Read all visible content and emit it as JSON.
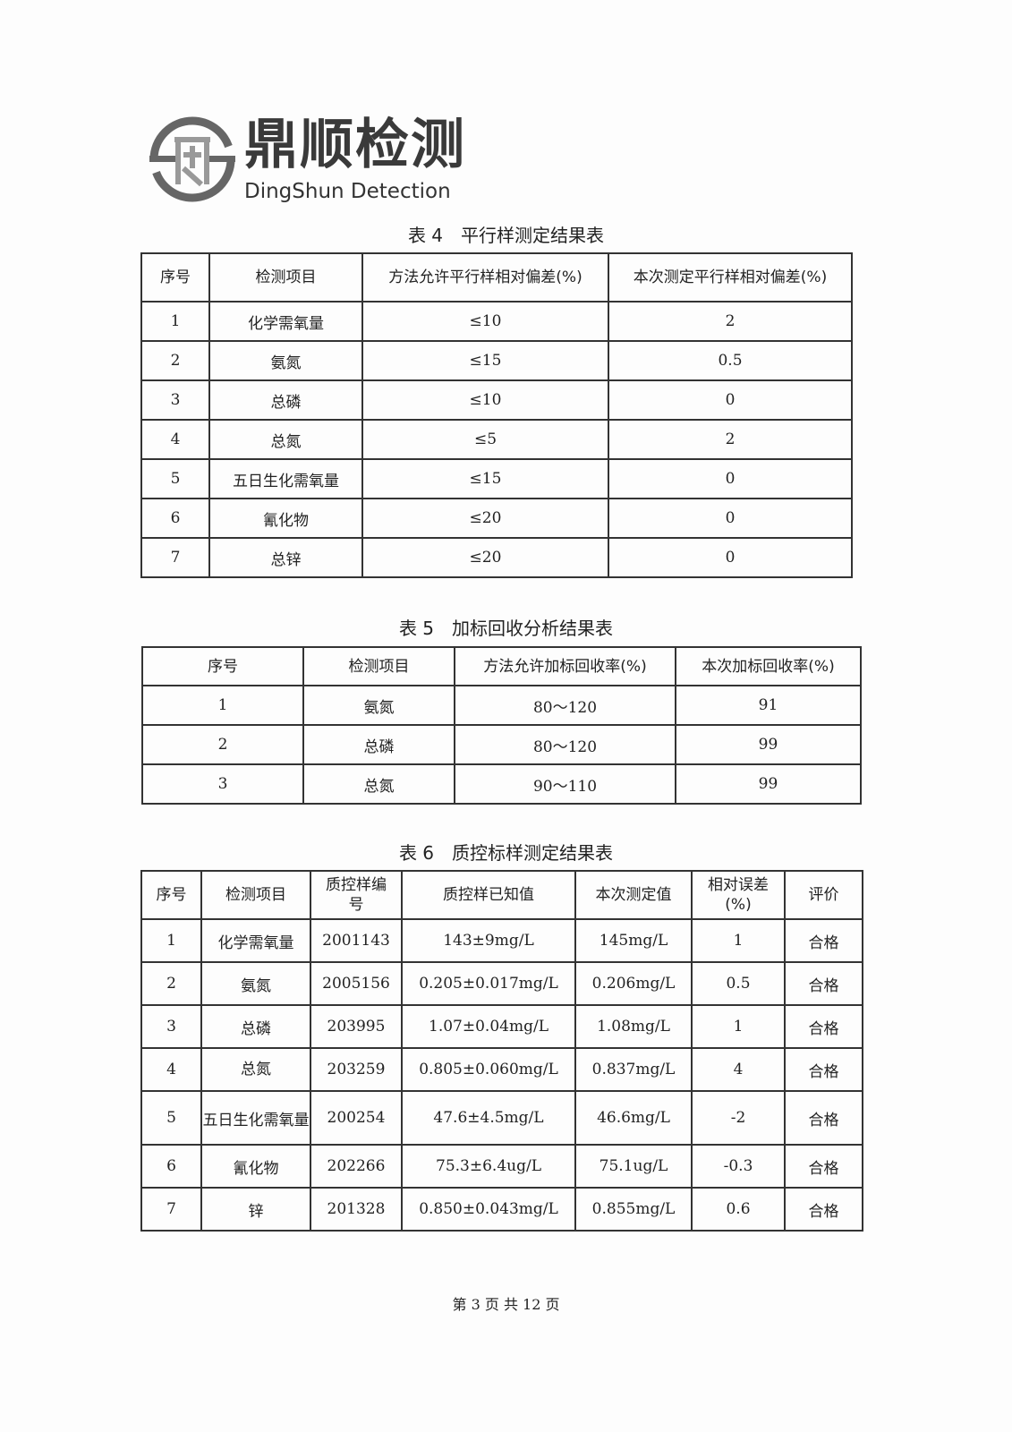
{
  "logo": {
    "cn": "鼎顺检测",
    "en": "DingShun Detection"
  },
  "table4": {
    "label": "表 4",
    "title": "平行样测定结果表",
    "headers": [
      "序号",
      "检测项目",
      "方法允许平行样相对偏差(%)",
      "本次测定平行样相对偏差(%)"
    ],
    "rows": [
      [
        "1",
        "化学需氧量",
        "≤10",
        "2"
      ],
      [
        "2",
        "氨氮",
        "≤15",
        "0.5"
      ],
      [
        "3",
        "总磷",
        "≤10",
        "0"
      ],
      [
        "4",
        "总氮",
        "≤5",
        "2"
      ],
      [
        "5",
        "五日生化需氧量",
        "≤15",
        "0"
      ],
      [
        "6",
        "氰化物",
        "≤20",
        "0"
      ],
      [
        "7",
        "总锌",
        "≤20",
        "0"
      ]
    ]
  },
  "table5": {
    "label": "表 5",
    "title": "加标回收分析结果表",
    "headers": [
      "序号",
      "检测项目",
      "方法允许加标回收率(%)",
      "本次加标回收率(%)"
    ],
    "rows": [
      [
        "1",
        "氨氮",
        "80～120",
        "91"
      ],
      [
        "2",
        "总磷",
        "80～120",
        "99"
      ],
      [
        "3",
        "总氮",
        "90～110",
        "99"
      ]
    ]
  },
  "table6": {
    "label": "表 6",
    "title": "质控标样测定结果表",
    "headers": [
      "序号",
      "检测项目",
      "质控样编号",
      "质控样已知值",
      "本次测定值",
      "相对误差(%)",
      "评价"
    ],
    "rows": [
      [
        "1",
        "化学需氧量",
        "2001143",
        "143±9mg/L",
        "145mg/L",
        "1",
        "合格"
      ],
      [
        "2",
        "氨氮",
        "2005156",
        "0.205±0.017mg/L",
        "0.206mg/L",
        "0.5",
        "合格"
      ],
      [
        "3",
        "总磷",
        "203995",
        "1.07±0.04mg/L",
        "1.08mg/L",
        "1",
        "合格"
      ],
      [
        "4",
        "总氮",
        "203259",
        "0.805±0.060mg/L",
        "0.837mg/L",
        "4",
        "合格"
      ],
      [
        "5",
        "五日生化需氧量",
        "200254",
        "47.6±4.5mg/L",
        "46.6mg/L",
        "-2",
        "合格"
      ],
      [
        "6",
        "氰化物",
        "202266",
        "75.3±6.4ug/L",
        "75.1ug/L",
        "-0.3",
        "合格"
      ],
      [
        "7",
        "锌",
        "201328",
        "0.850±0.043mg/L",
        "0.855mg/L",
        "0.6",
        "合格"
      ]
    ]
  },
  "footer": "第 3 页 共 12 页"
}
